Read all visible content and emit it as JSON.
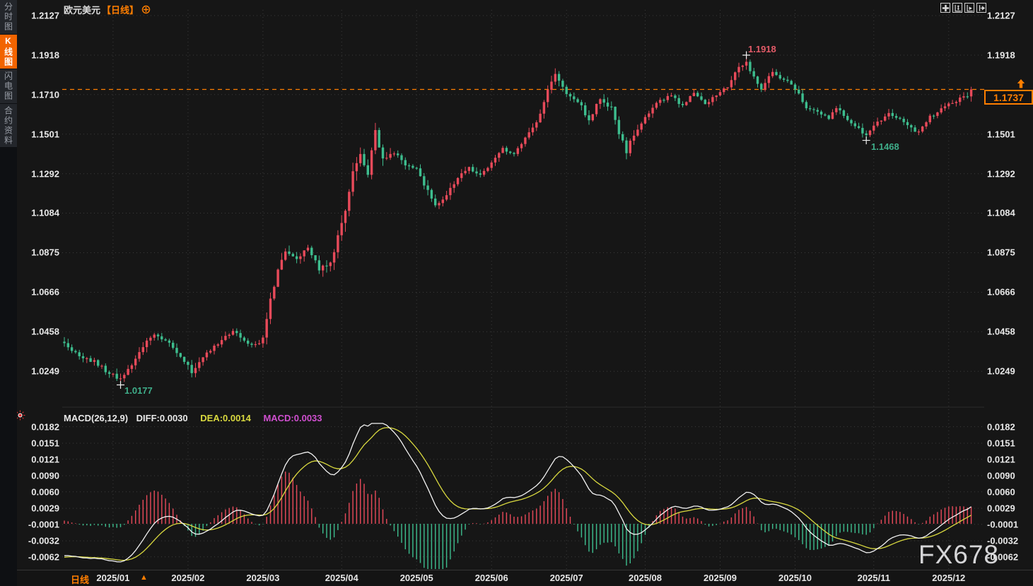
{
  "app": {
    "watermark": "FX678"
  },
  "sidebar": {
    "items": [
      {
        "label": "分时图",
        "active": false
      },
      {
        "label": "K线图",
        "active": true
      },
      {
        "label": "闪电图",
        "active": false
      },
      {
        "label": "合约资料",
        "active": false
      }
    ]
  },
  "header": {
    "symbol": "欧元美元",
    "period_tag": "【日线】"
  },
  "toolbar": {
    "buttons": [
      "move",
      "zoom-vertical",
      "zoom-horizontal",
      "pan-right"
    ]
  },
  "price_axis": {
    "labels": [
      "1.2127",
      "1.1918",
      "1.1710",
      "1.1501",
      "1.1292",
      "1.1084",
      "1.0875",
      "1.0666",
      "1.0458",
      "1.0249"
    ],
    "values": [
      1.2127,
      1.1918,
      1.171,
      1.1501,
      1.1292,
      1.1084,
      1.0875,
      1.0666,
      1.0458,
      1.0249
    ]
  },
  "macd_panel": {
    "formula": "MACD(26,12,9)",
    "diff_label": "DIFF:0.0030",
    "dea_label": "DEA:0.0014",
    "macd_label": "MACD:0.0033",
    "axis_labels": [
      "0.0182",
      "0.0151",
      "0.0121",
      "0.0090",
      "0.0060",
      "0.0029",
      "-0.0001",
      "-0.0032",
      "-0.0062"
    ],
    "axis_values": [
      0.0182,
      0.0151,
      0.0121,
      0.009,
      0.006,
      0.0029,
      -0.0001,
      -0.0032,
      -0.0062
    ]
  },
  "x_axis": {
    "labels": [
      "2025/01",
      "2025/02",
      "2025/03",
      "2025/04",
      "2025/05",
      "2025/06",
      "2025/07",
      "2025/08",
      "2025/09",
      "2025/10",
      "2025/11",
      "2025/12"
    ]
  },
  "footer": {
    "period_label": "日线",
    "arrow": "▲"
  },
  "colors": {
    "up": "#e84a5a",
    "down": "#3dbd8e",
    "accent": "#ff7e00",
    "diff_line": "#f2f2f2",
    "dea_line": "#d9d93f",
    "macd_value_text": "#cf4fcf",
    "grid": "#3b3b3b",
    "high_label": "#e25b68",
    "low_label": "#3fae8a"
  },
  "chart_data": {
    "type": "candlestick",
    "title": "欧元美元 日线 (EUR/USD daily, 2025/01 - 2025/12)",
    "num_candles": 243,
    "price_range": [
      1.0249,
      1.2127
    ],
    "macd_range": [
      -0.0062,
      0.0182
    ],
    "month_start_indices": [
      13,
      33,
      53,
      74,
      94,
      114,
      134,
      155,
      175,
      195,
      216,
      236
    ],
    "close_anchors": [
      [
        0,
        1.0395,
        0.9
      ],
      [
        4,
        1.033,
        0.9
      ],
      [
        8,
        1.03,
        1.0
      ],
      [
        12,
        1.024,
        1.0
      ],
      [
        15,
        1.0205,
        1.1
      ],
      [
        18,
        1.028,
        0.9
      ],
      [
        22,
        1.042,
        1.0
      ],
      [
        25,
        1.044,
        0.9
      ],
      [
        28,
        1.0395,
        0.8
      ],
      [
        31,
        1.033,
        0.9
      ],
      [
        34,
        1.0245,
        1.0
      ],
      [
        37,
        1.032,
        0.9
      ],
      [
        41,
        1.0395,
        0.8
      ],
      [
        45,
        1.0465,
        0.9
      ],
      [
        48,
        1.041,
        0.8
      ],
      [
        51,
        1.0385,
        0.8
      ],
      [
        53,
        1.042,
        1.2
      ],
      [
        55,
        1.062,
        1.8
      ],
      [
        57,
        1.08,
        1.6
      ],
      [
        59,
        1.088,
        1.3
      ],
      [
        62,
        1.083,
        1.1
      ],
      [
        65,
        1.09,
        1.0
      ],
      [
        68,
        1.0785,
        1.1
      ],
      [
        71,
        1.082,
        1.4
      ],
      [
        73,
        1.095,
        2.2
      ],
      [
        75,
        1.109,
        2.4
      ],
      [
        77,
        1.132,
        2.0
      ],
      [
        79,
        1.138,
        1.6
      ],
      [
        81,
        1.129,
        1.5
      ],
      [
        83,
        1.151,
        1.6
      ],
      [
        85,
        1.138,
        1.4
      ],
      [
        88,
        1.1405,
        1.0
      ],
      [
        91,
        1.133,
        0.9
      ],
      [
        94,
        1.131,
        1.0
      ],
      [
        96,
        1.124,
        1.1
      ],
      [
        99,
        1.112,
        1.2
      ],
      [
        102,
        1.118,
        1.0
      ],
      [
        105,
        1.127,
        0.9
      ],
      [
        108,
        1.132,
        0.8
      ],
      [
        111,
        1.1285,
        0.8
      ],
      [
        114,
        1.135,
        0.8
      ],
      [
        117,
        1.142,
        0.8
      ],
      [
        120,
        1.1395,
        0.8
      ],
      [
        123,
        1.148,
        0.9
      ],
      [
        126,
        1.156,
        1.0
      ],
      [
        129,
        1.173,
        1.2
      ],
      [
        131,
        1.181,
        1.1
      ],
      [
        134,
        1.172,
        1.0
      ],
      [
        137,
        1.168,
        1.0
      ],
      [
        140,
        1.1575,
        1.0
      ],
      [
        143,
        1.169,
        1.0
      ],
      [
        146,
        1.164,
        1.0
      ],
      [
        148,
        1.15,
        1.3
      ],
      [
        150,
        1.1415,
        1.4
      ],
      [
        153,
        1.153,
        1.0
      ],
      [
        156,
        1.162,
        0.9
      ],
      [
        159,
        1.168,
        0.8
      ],
      [
        162,
        1.17,
        0.8
      ],
      [
        165,
        1.165,
        0.8
      ],
      [
        168,
        1.172,
        0.8
      ],
      [
        171,
        1.166,
        0.8
      ],
      [
        174,
        1.171,
        0.8
      ],
      [
        177,
        1.175,
        0.9
      ],
      [
        180,
        1.185,
        1.0
      ],
      [
        182,
        1.188,
        1.0
      ],
      [
        184,
        1.18,
        1.0
      ],
      [
        186,
        1.174,
        1.0
      ],
      [
        189,
        1.183,
        0.9
      ],
      [
        192,
        1.179,
        0.8
      ],
      [
        195,
        1.174,
        0.8
      ],
      [
        198,
        1.164,
        0.9
      ],
      [
        201,
        1.162,
        0.8
      ],
      [
        204,
        1.158,
        0.8
      ],
      [
        206,
        1.164,
        0.8
      ],
      [
        209,
        1.158,
        0.8
      ],
      [
        212,
        1.153,
        0.8
      ],
      [
        214,
        1.1495,
        0.9
      ],
      [
        217,
        1.156,
        0.8
      ],
      [
        220,
        1.161,
        0.8
      ],
      [
        223,
        1.158,
        0.8
      ],
      [
        226,
        1.153,
        0.9
      ],
      [
        228,
        1.1505,
        0.9
      ],
      [
        231,
        1.159,
        0.8
      ],
      [
        234,
        1.163,
        0.8
      ],
      [
        236,
        1.1655,
        0.8
      ],
      [
        239,
        1.169,
        0.8
      ],
      [
        241,
        1.1705,
        0.8
      ],
      [
        242,
        1.1737,
        1.0
      ]
    ],
    "preroll_anchors": [
      [
        -34,
        1.076,
        0.9
      ],
      [
        -20,
        1.056,
        0.9
      ],
      [
        -8,
        1.043,
        0.9
      ],
      [
        -1,
        1.0405,
        0.9
      ]
    ],
    "markers": [
      {
        "index": 15,
        "price": 1.0177,
        "type": "low",
        "label": "1.0177"
      },
      {
        "index": 182,
        "price": 1.1918,
        "type": "high",
        "label": "1.1918"
      },
      {
        "index": 214,
        "price": 1.1468,
        "type": "low",
        "label": "1.1468"
      }
    ],
    "current": {
      "label": "1.1737",
      "value": 1.1737
    },
    "macd": {
      "params": [
        26,
        12,
        9
      ],
      "last_diff": 0.003,
      "last_dea": 0.0014,
      "last_macd": 0.0033
    }
  }
}
